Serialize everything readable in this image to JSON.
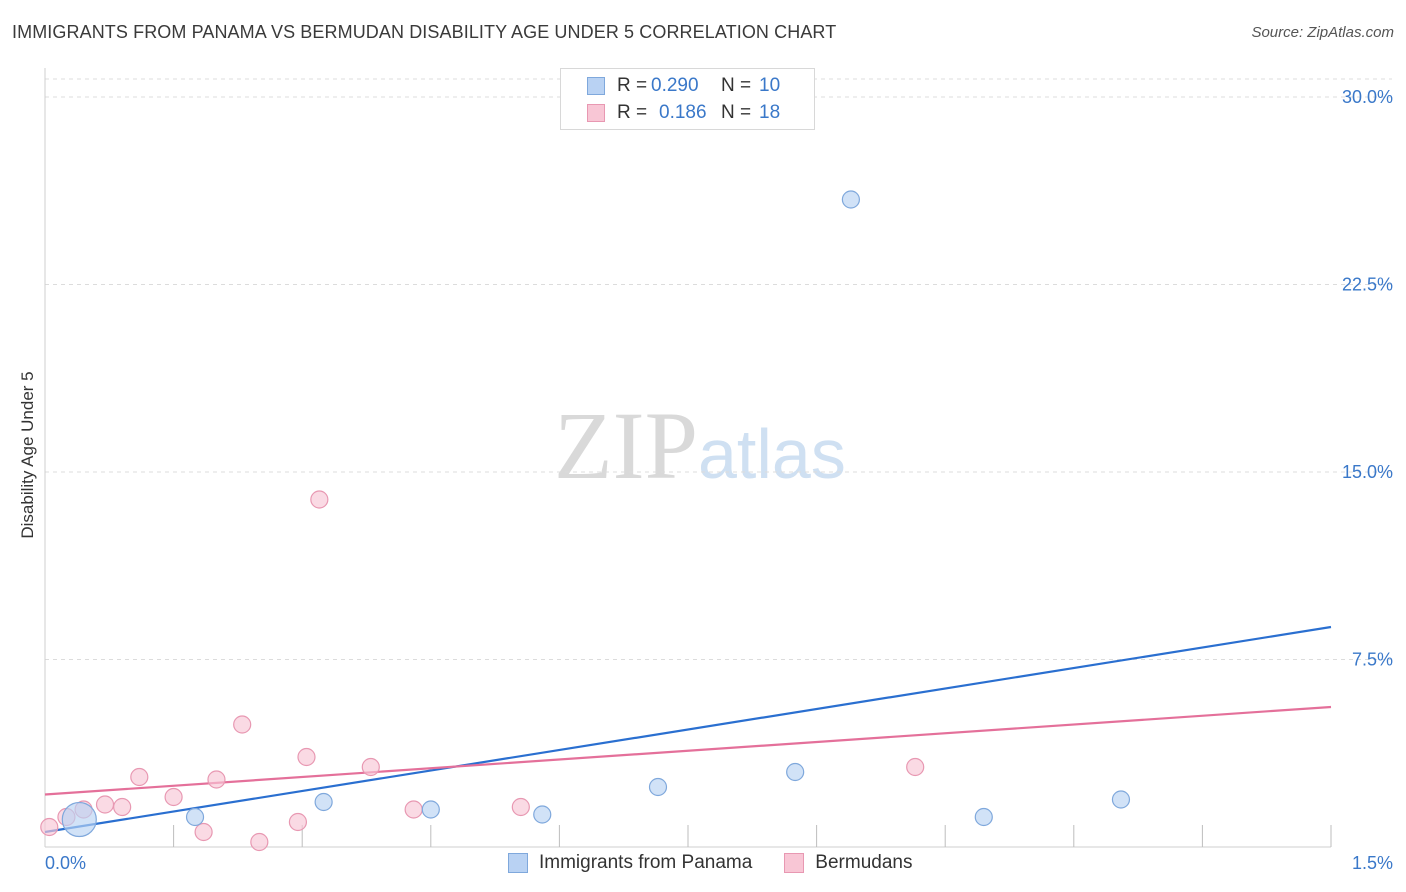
{
  "header": {
    "title": "IMMIGRANTS FROM PANAMA VS BERMUDAN DISABILITY AGE UNDER 5 CORRELATION CHART",
    "source": "Source: ZipAtlas.com"
  },
  "watermark": {
    "zip": "ZIP",
    "atlas": "atlas"
  },
  "legend_top": {
    "rows": [
      {
        "r_label": "R =",
        "r_value": "0.290",
        "n_label": "N =",
        "n_value": "10"
      },
      {
        "r_label": "R =",
        "r_value": "0.186",
        "n_label": "N =",
        "n_value": "18"
      }
    ]
  },
  "legend_bottom": {
    "items": [
      {
        "label": "Immigrants from Panama"
      },
      {
        "label": "Bermudans"
      }
    ]
  },
  "colors": {
    "blue_fill": "#b9d2f3",
    "blue_stroke": "#7fa8dc",
    "blue_line": "#2a6fd0",
    "pink_fill": "#f8c6d5",
    "pink_stroke": "#e898b2",
    "pink_line": "#e4709a",
    "tick_label": "#3a78c9",
    "grid": "#dcdcdc"
  },
  "chart_data": {
    "type": "scatter",
    "title": "IMMIGRANTS FROM PANAMA VS BERMUDAN DISABILITY AGE UNDER 5 CORRELATION CHART",
    "xlabel": "",
    "ylabel": "Disability Age Under 5",
    "xlim": [
      0,
      1.5
    ],
    "ylim": [
      0,
      30
    ],
    "x_ticks": [
      {
        "value": 0,
        "label": "0.0%"
      },
      {
        "value": 1.5,
        "label": "1.5%"
      }
    ],
    "y_ticks": [
      {
        "value": 7.5,
        "label": "7.5%"
      },
      {
        "value": 15,
        "label": "15.0%"
      },
      {
        "value": 22.5,
        "label": "22.5%"
      },
      {
        "value": 30,
        "label": "30.0%"
      }
    ],
    "grid": true,
    "series": [
      {
        "name": "Immigrants from Panama",
        "color": "blue",
        "r": 0.29,
        "n": 10,
        "points": [
          {
            "x": 0.04,
            "y": 1.1,
            "size": "large"
          },
          {
            "x": 0.175,
            "y": 1.2
          },
          {
            "x": 0.325,
            "y": 1.8
          },
          {
            "x": 0.45,
            "y": 1.5
          },
          {
            "x": 0.58,
            "y": 1.3
          },
          {
            "x": 0.715,
            "y": 2.4
          },
          {
            "x": 0.875,
            "y": 3.0
          },
          {
            "x": 0.94,
            "y": 25.9
          },
          {
            "x": 1.095,
            "y": 1.2
          },
          {
            "x": 1.255,
            "y": 1.9
          }
        ],
        "trend": {
          "x": [
            0,
            1.5
          ],
          "y": [
            0.6,
            8.8
          ]
        }
      },
      {
        "name": "Bermudans",
        "color": "pink",
        "r": 0.186,
        "n": 18,
        "points": [
          {
            "x": 0.005,
            "y": 0.8
          },
          {
            "x": 0.025,
            "y": 1.2
          },
          {
            "x": 0.045,
            "y": 1.5
          },
          {
            "x": 0.07,
            "y": 1.7
          },
          {
            "x": 0.09,
            "y": 1.6
          },
          {
            "x": 0.11,
            "y": 2.8
          },
          {
            "x": 0.15,
            "y": 2.0
          },
          {
            "x": 0.185,
            "y": 0.6
          },
          {
            "x": 0.2,
            "y": 2.7
          },
          {
            "x": 0.23,
            "y": 4.9
          },
          {
            "x": 0.25,
            "y": 0.2
          },
          {
            "x": 0.295,
            "y": 1.0
          },
          {
            "x": 0.305,
            "y": 3.6
          },
          {
            "x": 0.32,
            "y": 13.9
          },
          {
            "x": 0.38,
            "y": 3.2
          },
          {
            "x": 0.43,
            "y": 1.5
          },
          {
            "x": 0.555,
            "y": 1.6
          },
          {
            "x": 1.015,
            "y": 3.2
          }
        ],
        "trend": {
          "x": [
            0,
            1.5
          ],
          "y": [
            2.1,
            5.6
          ]
        }
      }
    ]
  }
}
